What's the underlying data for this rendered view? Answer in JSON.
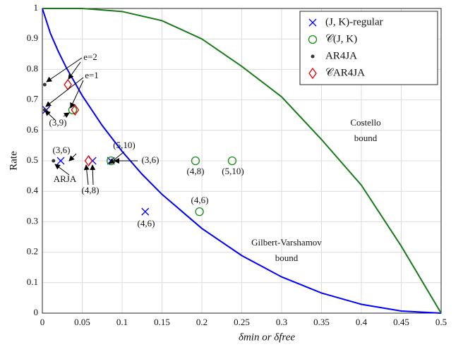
{
  "chart_data": {
    "type": "scatter",
    "xlabel": "δmin  or  δfree",
    "ylabel": "Rate",
    "xlim": [
      0,
      0.5
    ],
    "ylim": [
      0,
      1
    ],
    "xticks": [
      0,
      0.05,
      0.1,
      0.15,
      0.2,
      0.25,
      0.3,
      0.35,
      0.4,
      0.45,
      0.5
    ],
    "yticks": [
      0,
      0.1,
      0.2,
      0.3,
      0.4,
      0.5,
      0.6,
      0.7,
      0.8,
      0.9,
      1
    ],
    "grid": true,
    "legend": "upper right",
    "lines": [
      {
        "color": "#0000ff",
        "x": [
          0,
          0.01,
          0.02,
          0.03,
          0.05,
          0.075,
          0.1,
          0.125,
          0.15,
          0.2,
          0.25,
          0.3,
          0.35,
          0.4,
          0.45,
          0.5
        ],
        "values": [
          1,
          0.919,
          0.859,
          0.806,
          0.714,
          0.616,
          0.531,
          0.456,
          0.39,
          0.278,
          0.189,
          0.119,
          0.066,
          0.029,
          0.007,
          0
        ]
      },
      {
        "color": "#1a7a1a",
        "x": [
          0,
          0.05,
          0.1,
          0.15,
          0.2,
          0.25,
          0.3,
          0.35,
          0.4,
          0.45,
          0.5
        ],
        "values": [
          1,
          1,
          0.99,
          0.96,
          0.9,
          0.81,
          0.71,
          0.57,
          0.42,
          0.22,
          0
        ]
      }
    ],
    "series": [
      {
        "name": "(J, K)-regular",
        "marker": "x",
        "color": "#0000ff",
        "x": [
          0.005,
          0.023,
          0.063,
          0.086,
          0.129
        ],
        "values": [
          0.667,
          0.5,
          0.5,
          0.5,
          0.333
        ]
      },
      {
        "name": "𝒞(J, K)",
        "marker": "o",
        "color": "#1a8a1a",
        "x": [
          0.038,
          0.086,
          0.192,
          0.238,
          0.197
        ],
        "values": [
          0.667,
          0.5,
          0.5,
          0.5,
          0.333
        ]
      },
      {
        "name": "AR4JA",
        "marker": "dot",
        "color": "#333333",
        "x": [
          0.003,
          0.003,
          0.014
        ],
        "values": [
          0.75,
          0.667,
          0.5
        ]
      },
      {
        "name": "𝒞AR4JA",
        "marker": "diamond",
        "color": "#e00000",
        "x": [
          0.032,
          0.041,
          0.058
        ],
        "values": [
          0.75,
          0.667,
          0.5
        ]
      }
    ],
    "annotations": [
      "e=2",
      "e=1",
      "(3,9)",
      "(3,6)",
      "ARJA",
      "(4,8)",
      "(5,10)",
      "(3,6)",
      "(4,8)",
      "(5,10)",
      "(4,6)",
      "(4,6)",
      "Costello",
      "bound",
      "Gilbert-Varshamov",
      "bound"
    ]
  }
}
